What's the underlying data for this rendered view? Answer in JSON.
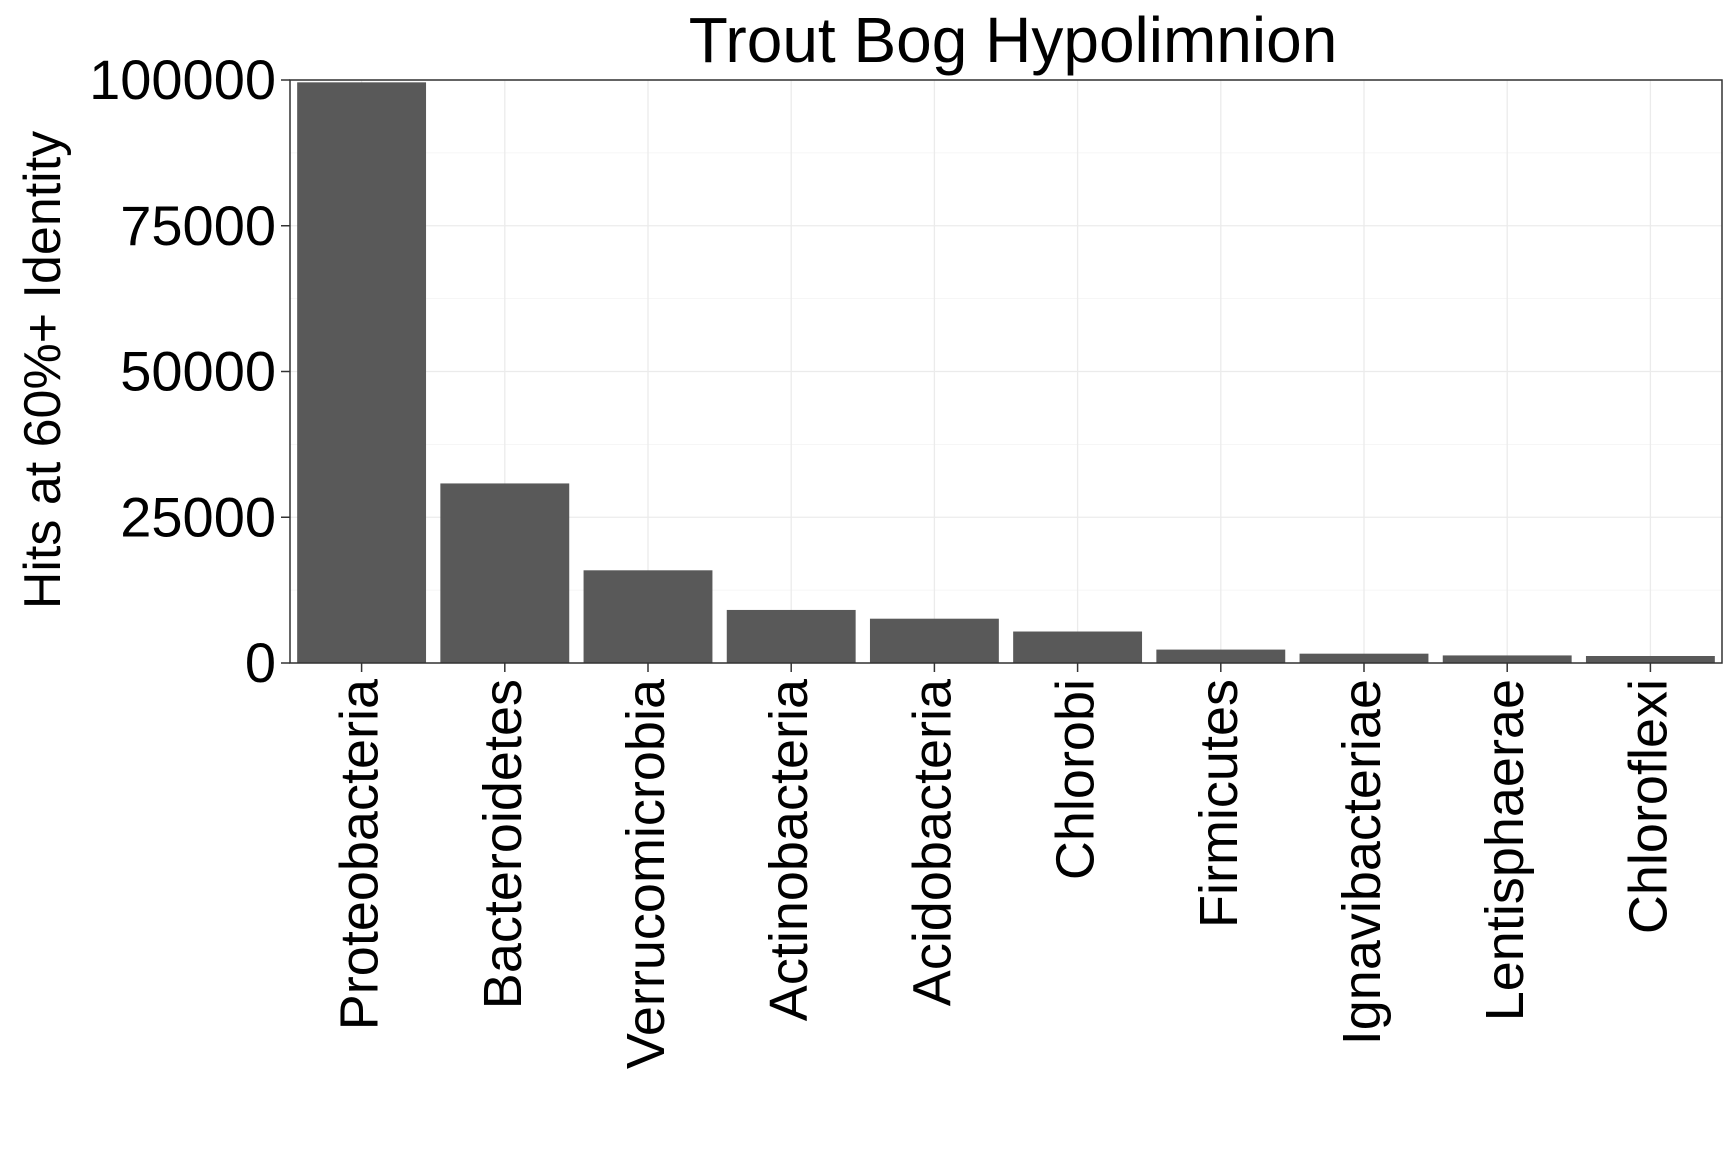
{
  "chart_data": {
    "type": "bar",
    "title": "Trout Bog Hypolimnion",
    "xlabel": "",
    "ylabel": "Hits at 60%+ Identity",
    "categories": [
      "Proteobacteria",
      "Bacteroidetes",
      "Verrucomicrobia",
      "Actinobacteria",
      "Acidobacteria",
      "Chlorobi",
      "Firmicutes",
      "Ignavibacteriae",
      "Lentisphaerae",
      "Chloroflexi"
    ],
    "values": [
      99600,
      30800,
      15900,
      9100,
      7600,
      5400,
      2300,
      1600,
      1300,
      1200
    ],
    "ylim": [
      0,
      100000
    ],
    "yticks": [
      0,
      25000,
      50000,
      75000,
      100000
    ],
    "ytick_labels": [
      "0",
      "25000",
      "50000",
      "75000",
      "100000"
    ],
    "grid": true,
    "bar_color": "#595959",
    "panel_border_color": "#333333",
    "grid_color": "#ebebeb"
  }
}
